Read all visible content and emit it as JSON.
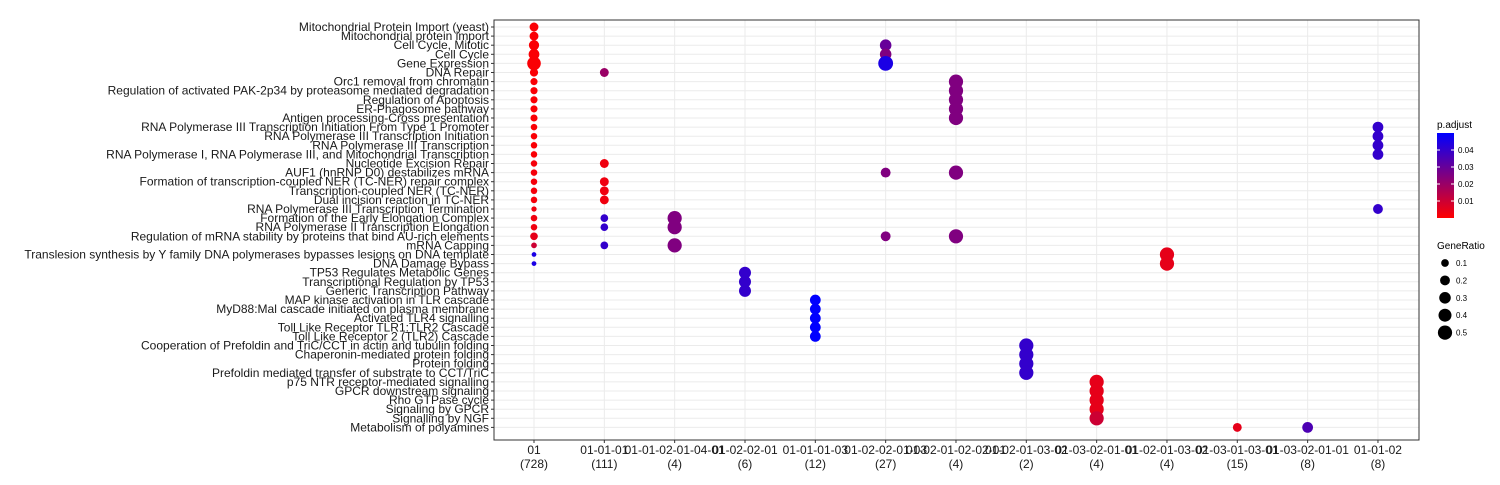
{
  "chart_data": {
    "type": "scatter",
    "title": "",
    "xlabel": "",
    "ylabel": "",
    "grid": true,
    "legend_position": "right",
    "x_categories": [
      {
        "label": "01",
        "count": "(728)"
      },
      {
        "label": "01-01-01",
        "count": "(111)"
      },
      {
        "label": "01-01-02-01-04-01",
        "count": "(4)"
      },
      {
        "label": "01-02-02-01",
        "count": "(6)"
      },
      {
        "label": "01-01-01-03",
        "count": "(12)"
      },
      {
        "label": "01-02-02-01-03",
        "count": "(27)"
      },
      {
        "label": "01-02-01-02-02-01",
        "count": "(4)"
      },
      {
        "label": "01-02-01-03-02",
        "count": "(2)"
      },
      {
        "label": "01-03-02-01-01",
        "count": "(4)"
      },
      {
        "label": "01-02-01-03-02",
        "count": "(4)"
      },
      {
        "label": "01-03-01-03-01",
        "count": "(15)"
      },
      {
        "label": "01-03-02-01-01",
        "count": "(8)"
      },
      {
        "label": "01-01-02",
        "count": "(8)"
      }
    ],
    "y_categories": [
      "Mitochondrial Protein Import (yeast)",
      "Mitochondrial protein import",
      "Cell Cycle, Mitotic",
      "Cell Cycle",
      "Gene Expression",
      "DNA Repair",
      "Orc1 removal from chromatin",
      "Regulation of activated PAK-2p34 by proteasome mediated degradation",
      "Regulation of Apoptosis",
      "ER-Phagosome pathway",
      "Antigen processing-Cross presentation",
      "RNA Polymerase III Transcription Initiation From Type 1 Promoter",
      "RNA Polymerase III Transcription Initiation",
      "RNA Polymerase III Transcription",
      "RNA Polymerase I, RNA Polymerase III, and Mitochondrial Transcription",
      "Nucleotide Excision Repair",
      "AUF1 (hnRNP D0) destabilizes mRNA",
      "Formation of transcription-coupled NER (TC-NER) repair complex",
      "Transcription-coupled NER (TC-NER)",
      "Dual incision reaction in TC-NER",
      "RNA Polymerase III Transcription Termination",
      "Formation of the Early Elongation Complex",
      "RNA Polymerase II Transcription Elongation",
      "Regulation of mRNA stability by proteins that bind AU-rich elements",
      "mRNA Capping",
      "Translesion synthesis by Y family DNA polymerases bypasses lesions on DNA template",
      "DNA Damage Bypass",
      "TP53 Regulates Metabolic Genes",
      "Transcriptional Regulation by TP53",
      "Generic Transcription Pathway",
      "MAP kinase activation in TLR cascade",
      "MyD88:Mal cascade initiated on plasma membrane",
      "Activated TLR4 signalling",
      "Toll Like Receptor TLR1:TLR2 Cascade",
      "Toll Like Receptor 2 (TLR2) Cascade",
      "Cooperation of Prefoldin and TriC/CCT  in actin and tubulin folding",
      "Chaperonin-mediated protein folding",
      "Protein folding",
      "Prefoldin mediated transfer of substrate  to CCT/TriC",
      "p75 NTR receptor-mediated signalling",
      "GPCR downstream signaling",
      "Rho GTPase cycle",
      "Signaling by GPCR",
      "Signalling by NGF",
      "Metabolism of polyamines"
    ],
    "points": [
      {
        "x": 0,
        "y": 0,
        "gene_ratio": 0.15,
        "p_adjust": 0.001
      },
      {
        "x": 0,
        "y": 1,
        "gene_ratio": 0.15,
        "p_adjust": 0.001
      },
      {
        "x": 0,
        "y": 2,
        "gene_ratio": 0.22,
        "p_adjust": 0.001
      },
      {
        "x": 0,
        "y": 3,
        "gene_ratio": 0.25,
        "p_adjust": 0.001
      },
      {
        "x": 0,
        "y": 4,
        "gene_ratio": 0.45,
        "p_adjust": 0.001
      },
      {
        "x": 0,
        "y": 5,
        "gene_ratio": 0.12,
        "p_adjust": 0.001
      },
      {
        "x": 0,
        "y": 6,
        "gene_ratio": 0.08,
        "p_adjust": 0.001
      },
      {
        "x": 0,
        "y": 7,
        "gene_ratio": 0.08,
        "p_adjust": 0.001
      },
      {
        "x": 0,
        "y": 8,
        "gene_ratio": 0.08,
        "p_adjust": 0.001
      },
      {
        "x": 0,
        "y": 9,
        "gene_ratio": 0.08,
        "p_adjust": 0.001
      },
      {
        "x": 0,
        "y": 10,
        "gene_ratio": 0.08,
        "p_adjust": 0.001
      },
      {
        "x": 0,
        "y": 11,
        "gene_ratio": 0.06,
        "p_adjust": 0.001
      },
      {
        "x": 0,
        "y": 12,
        "gene_ratio": 0.06,
        "p_adjust": 0.001
      },
      {
        "x": 0,
        "y": 13,
        "gene_ratio": 0.06,
        "p_adjust": 0.001
      },
      {
        "x": 0,
        "y": 14,
        "gene_ratio": 0.06,
        "p_adjust": 0.001
      },
      {
        "x": 0,
        "y": 15,
        "gene_ratio": 0.06,
        "p_adjust": 0.002
      },
      {
        "x": 0,
        "y": 16,
        "gene_ratio": 0.06,
        "p_adjust": 0.002
      },
      {
        "x": 0,
        "y": 17,
        "gene_ratio": 0.06,
        "p_adjust": 0.002
      },
      {
        "x": 0,
        "y": 18,
        "gene_ratio": 0.06,
        "p_adjust": 0.002
      },
      {
        "x": 0,
        "y": 19,
        "gene_ratio": 0.06,
        "p_adjust": 0.002
      },
      {
        "x": 0,
        "y": 20,
        "gene_ratio": 0.03,
        "p_adjust": 0.003
      },
      {
        "x": 0,
        "y": 21,
        "gene_ratio": 0.06,
        "p_adjust": 0.003
      },
      {
        "x": 0,
        "y": 22,
        "gene_ratio": 0.06,
        "p_adjust": 0.003
      },
      {
        "x": 0,
        "y": 23,
        "gene_ratio": 0.1,
        "p_adjust": 0.005
      },
      {
        "x": 0,
        "y": 24,
        "gene_ratio": 0.04,
        "p_adjust": 0.01
      },
      {
        "x": 0,
        "y": 25,
        "gene_ratio": 0.02,
        "p_adjust": 0.045
      },
      {
        "x": 0,
        "y": 26,
        "gene_ratio": 0.02,
        "p_adjust": 0.045
      },
      {
        "x": 1,
        "y": 5,
        "gene_ratio": 0.15,
        "p_adjust": 0.02
      },
      {
        "x": 1,
        "y": 15,
        "gene_ratio": 0.15,
        "p_adjust": 0.003
      },
      {
        "x": 1,
        "y": 17,
        "gene_ratio": 0.15,
        "p_adjust": 0.003
      },
      {
        "x": 1,
        "y": 18,
        "gene_ratio": 0.15,
        "p_adjust": 0.003
      },
      {
        "x": 1,
        "y": 19,
        "gene_ratio": 0.15,
        "p_adjust": 0.003
      },
      {
        "x": 1,
        "y": 21,
        "gene_ratio": 0.1,
        "p_adjust": 0.04
      },
      {
        "x": 1,
        "y": 22,
        "gene_ratio": 0.1,
        "p_adjust": 0.04
      },
      {
        "x": 1,
        "y": 24,
        "gene_ratio": 0.1,
        "p_adjust": 0.04
      },
      {
        "x": 2,
        "y": 21,
        "gene_ratio": 0.5,
        "p_adjust": 0.025
      },
      {
        "x": 2,
        "y": 22,
        "gene_ratio": 0.5,
        "p_adjust": 0.025
      },
      {
        "x": 2,
        "y": 24,
        "gene_ratio": 0.5,
        "p_adjust": 0.025
      },
      {
        "x": 3,
        "y": 27,
        "gene_ratio": 0.33,
        "p_adjust": 0.04
      },
      {
        "x": 3,
        "y": 28,
        "gene_ratio": 0.33,
        "p_adjust": 0.04
      },
      {
        "x": 3,
        "y": 29,
        "gene_ratio": 0.33,
        "p_adjust": 0.04
      },
      {
        "x": 4,
        "y": 30,
        "gene_ratio": 0.25,
        "p_adjust": 0.05
      },
      {
        "x": 4,
        "y": 31,
        "gene_ratio": 0.25,
        "p_adjust": 0.05
      },
      {
        "x": 4,
        "y": 32,
        "gene_ratio": 0.25,
        "p_adjust": 0.05
      },
      {
        "x": 4,
        "y": 33,
        "gene_ratio": 0.25,
        "p_adjust": 0.05
      },
      {
        "x": 4,
        "y": 34,
        "gene_ratio": 0.25,
        "p_adjust": 0.05
      },
      {
        "x": 5,
        "y": 2,
        "gene_ratio": 0.3,
        "p_adjust": 0.03
      },
      {
        "x": 5,
        "y": 3,
        "gene_ratio": 0.3,
        "p_adjust": 0.025
      },
      {
        "x": 5,
        "y": 4,
        "gene_ratio": 0.55,
        "p_adjust": 0.045
      },
      {
        "x": 5,
        "y": 16,
        "gene_ratio": 0.2,
        "p_adjust": 0.025
      },
      {
        "x": 5,
        "y": 23,
        "gene_ratio": 0.2,
        "p_adjust": 0.025
      },
      {
        "x": 6,
        "y": 6,
        "gene_ratio": 0.5,
        "p_adjust": 0.025
      },
      {
        "x": 6,
        "y": 7,
        "gene_ratio": 0.5,
        "p_adjust": 0.025
      },
      {
        "x": 6,
        "y": 8,
        "gene_ratio": 0.5,
        "p_adjust": 0.025
      },
      {
        "x": 6,
        "y": 9,
        "gene_ratio": 0.5,
        "p_adjust": 0.025
      },
      {
        "x": 6,
        "y": 10,
        "gene_ratio": 0.5,
        "p_adjust": 0.025
      },
      {
        "x": 6,
        "y": 16,
        "gene_ratio": 0.5,
        "p_adjust": 0.025
      },
      {
        "x": 6,
        "y": 23,
        "gene_ratio": 0.5,
        "p_adjust": 0.025
      },
      {
        "x": 7,
        "y": 35,
        "gene_ratio": 0.5,
        "p_adjust": 0.04
      },
      {
        "x": 7,
        "y": 36,
        "gene_ratio": 0.5,
        "p_adjust": 0.04
      },
      {
        "x": 7,
        "y": 37,
        "gene_ratio": 0.5,
        "p_adjust": 0.04
      },
      {
        "x": 7,
        "y": 38,
        "gene_ratio": 0.5,
        "p_adjust": 0.04
      },
      {
        "x": 8,
        "y": 39,
        "gene_ratio": 0.5,
        "p_adjust": 0.005
      },
      {
        "x": 8,
        "y": 40,
        "gene_ratio": 0.5,
        "p_adjust": 0.005
      },
      {
        "x": 8,
        "y": 41,
        "gene_ratio": 0.5,
        "p_adjust": 0.005
      },
      {
        "x": 8,
        "y": 42,
        "gene_ratio": 0.5,
        "p_adjust": 0.005
      },
      {
        "x": 8,
        "y": 43,
        "gene_ratio": 0.5,
        "p_adjust": 0.01
      },
      {
        "x": 9,
        "y": 25,
        "gene_ratio": 0.5,
        "p_adjust": 0.005
      },
      {
        "x": 9,
        "y": 26,
        "gene_ratio": 0.5,
        "p_adjust": 0.005
      },
      {
        "x": 10,
        "y": 44,
        "gene_ratio": 0.15,
        "p_adjust": 0.005
      },
      {
        "x": 11,
        "y": 44,
        "gene_ratio": 0.25,
        "p_adjust": 0.035
      },
      {
        "x": 12,
        "y": 11,
        "gene_ratio": 0.25,
        "p_adjust": 0.04
      },
      {
        "x": 12,
        "y": 12,
        "gene_ratio": 0.25,
        "p_adjust": 0.04
      },
      {
        "x": 12,
        "y": 13,
        "gene_ratio": 0.25,
        "p_adjust": 0.04
      },
      {
        "x": 12,
        "y": 14,
        "gene_ratio": 0.25,
        "p_adjust": 0.04
      },
      {
        "x": 12,
        "y": 20,
        "gene_ratio": 0.2,
        "p_adjust": 0.04
      }
    ],
    "color_legend": {
      "title": "p.adjust",
      "ticks": [
        "0.04",
        "0.03",
        "0.02",
        "0.01"
      ],
      "tick_values": [
        0.04,
        0.03,
        0.02,
        0.01
      ],
      "range": [
        0.0,
        0.05
      ],
      "low_color": "#ff0000",
      "high_color": "#0000ff"
    },
    "size_legend": {
      "title": "GeneRatio",
      "ticks": [
        "0.1",
        "0.2",
        "0.3",
        "0.4",
        "0.5"
      ],
      "tick_values": [
        0.1,
        0.2,
        0.3,
        0.4,
        0.5
      ]
    },
    "colors": {
      "grid": "#ebebeb",
      "panel_border": "#333333",
      "text": "#1a1a1a"
    }
  }
}
